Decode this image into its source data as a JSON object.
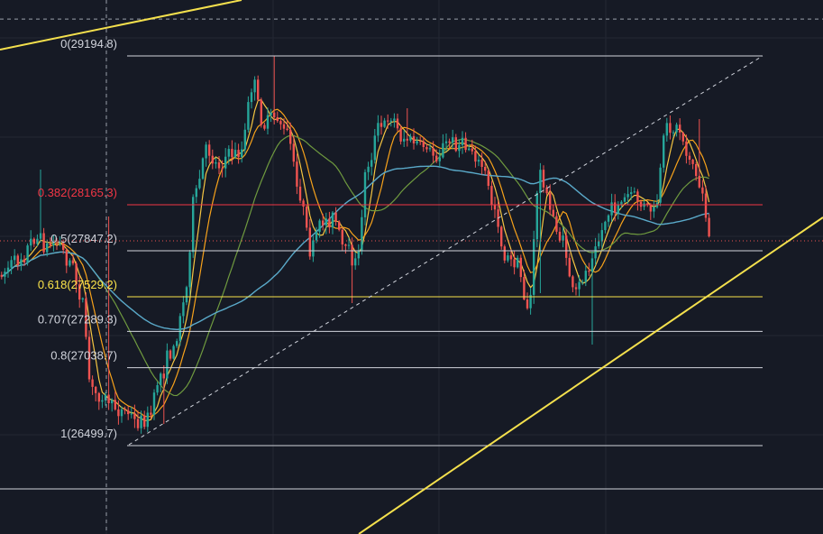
{
  "chart_data": {
    "type": "candlestick",
    "title": "",
    "xlabel": "",
    "ylabel": "",
    "ylim": [
      25800,
      29950
    ],
    "grid": true,
    "legend": "none",
    "colors": {
      "background": "#161a25",
      "grid": "#242834",
      "up": "#26a69a",
      "down": "#ef5350",
      "fib_line": "#d1d4dc",
      "fib_382": "#f23645",
      "fib_618": "#fbe44a",
      "trendline": "#f4e04d",
      "ma_fast": "#f5c542",
      "ma_mid": "#f7a21b",
      "ma_slow": "#6f9a3f",
      "ma_long": "#5aa9c9"
    },
    "fibonacci": [
      {
        "level": 0,
        "price": 29194.8,
        "label": "0(29194.8)",
        "color": "#d1d4dc"
      },
      {
        "level": 0.382,
        "price": 28165.3,
        "label": "0.382(28165.3)",
        "color": "#f23645"
      },
      {
        "level": 0.5,
        "price": 27847.2,
        "label": "0.5(27847.2)",
        "color": "#d1d4dc"
      },
      {
        "level": 0.618,
        "price": 27529.2,
        "label": "0.618(27529.2)",
        "color": "#fbe44a"
      },
      {
        "level": 0.707,
        "price": 27289.3,
        "label": "0.707(27289.3)",
        "color": "#d1d4dc"
      },
      {
        "level": 0.8,
        "price": 27038.7,
        "label": "0.8(27038.7)",
        "color": "#d1d4dc"
      },
      {
        "level": 1,
        "price": 26499.7,
        "label": "1(26499.7)",
        "color": "#d1d4dc"
      }
    ],
    "reference_price": 29450,
    "series": [
      {
        "kind": "close_path",
        "close": [
          27680,
          27750,
          27820,
          27940,
          27880,
          27900,
          27780,
          27560,
          26870,
          26840,
          26760,
          26730,
          26660,
          26700,
          26990,
          27160,
          27480,
          28250,
          28550,
          28440,
          28520,
          28540,
          29000,
          28720,
          28780,
          28650,
          28260,
          27860,
          28050,
          28070,
          27860,
          27750,
          28450,
          28690,
          28790,
          28630,
          28600,
          28570,
          28500,
          28600,
          28580,
          28560,
          28430,
          28150,
          27790,
          27740,
          27450,
          28400,
          28100,
          27890,
          27560,
          27700,
          27920,
          28100,
          28180,
          28250,
          28150,
          28130,
          28680,
          28700,
          28500,
          28280,
          27860
        ]
      }
    ]
  }
}
